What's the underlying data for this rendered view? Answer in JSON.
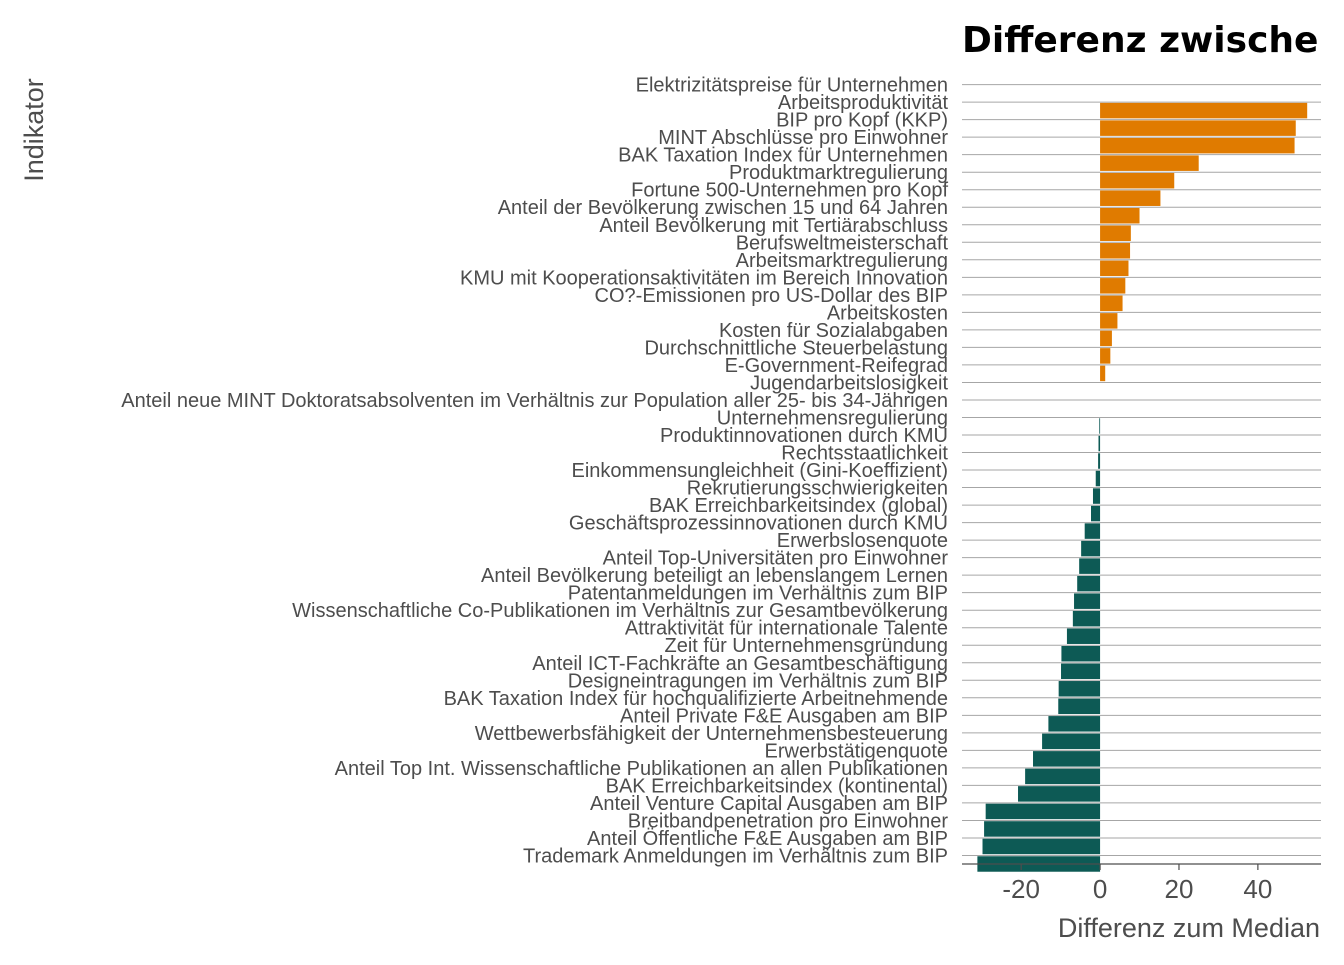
{
  "chart_data": {
    "type": "bar",
    "orientation": "horizontal",
    "title": "Differenz zwische",
    "xlabel": "Differenz zum Median",
    "ylabel": "Indikator",
    "xlim": [
      -35,
      56
    ],
    "xticks": [
      -20,
      0,
      20,
      40
    ],
    "grid": "horizontal",
    "colors": {
      "positive": "#E07B00",
      "negative": "#0D5A55",
      "grid": "#a6a6a6",
      "axis": "#4d4d4d"
    },
    "categories": [
      "Elektrizitätspreise für Unternehmen",
      "Arbeitsproduktivität",
      "BIP pro Kopf (KKP)",
      "MINT Abschlüsse pro Einwohner",
      "BAK Taxation Index für Unternehmen",
      "Produktmarktregulierung",
      "Fortune 500-Unternehmen pro Kopf",
      "Anteil der Bevölkerung zwischen 15 und 64 Jahren",
      "Anteil Bevölkerung mit Tertiärabschluss",
      "Berufsweltmeisterschaft",
      "Arbeitsmarktregulierung",
      "KMU mit Kooperationsaktivitäten im Bereich Innovation",
      "CO?-Emissionen pro US-Dollar des BIP",
      "Arbeitskosten",
      "Kosten für Sozialabgaben",
      "Durchschnittliche Steuerbelastung",
      "E-Government-Reifegrad",
      "Jugendarbeitslosigkeit",
      "Anteil neue MINT Doktoratsabsolventen im Verhältnis zur Population aller 25- bis 34-Jährigen",
      "Unternehmensregulierung",
      "Produktinnovationen durch KMU",
      "Rechtsstaatlichkeit",
      "Einkommensungleichheit (Gini-Koeffizient)",
      "Rekrutierungsschwierigkeiten",
      "BAK Erreichbarkeitsindex (global)",
      "Geschäftsprozessinnovationen durch KMU",
      "Erwerbslosenquote",
      "Anteil Top-Universitäten pro Einwohner",
      "Anteil Bevölkerung beteiligt an lebenslangem Lernen",
      "Patentanmeldungen im Verhältnis zum BIP",
      "Wissenschaftliche Co-Publikationen im Verhältnis zur Gesamtbevölkerung",
      "Attraktivität für internationale Talente",
      "Zeit für Unternehmensgründung",
      "Anteil ICT-Fachkräfte an Gesamtbeschäftigung",
      "Designeintragungen im Verhältnis zum BIP",
      "BAK Taxation Index für hochqualifizierte Arbeitnehmende",
      "Anteil Private F&E Ausgaben am BIP",
      "Wettbewerbsfähigkeit der Unternehmensbesteuerung",
      "Erwerbstätigenquote",
      "Anteil Top Int. Wissenschaftliche Publikationen an allen Publikationen",
      "BAK Erreichbarkeitsindex (kontinental)",
      "Anteil Venture Capital Ausgaben am BIP",
      "Breitbandpenetration pro Einwohner",
      "Anteil Öffentliche F&E Ausgaben am BIP",
      "Trademark Anmeldungen im Verhältnis zum BIP"
    ],
    "values": [
      null,
      52.5,
      49.6,
      49.3,
      25.0,
      18.8,
      15.3,
      10.0,
      7.8,
      7.6,
      7.2,
      6.4,
      5.7,
      4.4,
      3.0,
      2.6,
      1.3,
      null,
      null,
      -0.2,
      -0.4,
      -0.5,
      -1.1,
      -1.8,
      -2.3,
      -3.9,
      -4.8,
      -5.3,
      -5.8,
      -6.6,
      -6.9,
      -8.4,
      -9.8,
      -9.9,
      -10.5,
      -10.6,
      -13.1,
      -14.7,
      -17.0,
      -19.0,
      -20.8,
      -29.0,
      -29.4,
      -29.8,
      -31.1
    ]
  }
}
